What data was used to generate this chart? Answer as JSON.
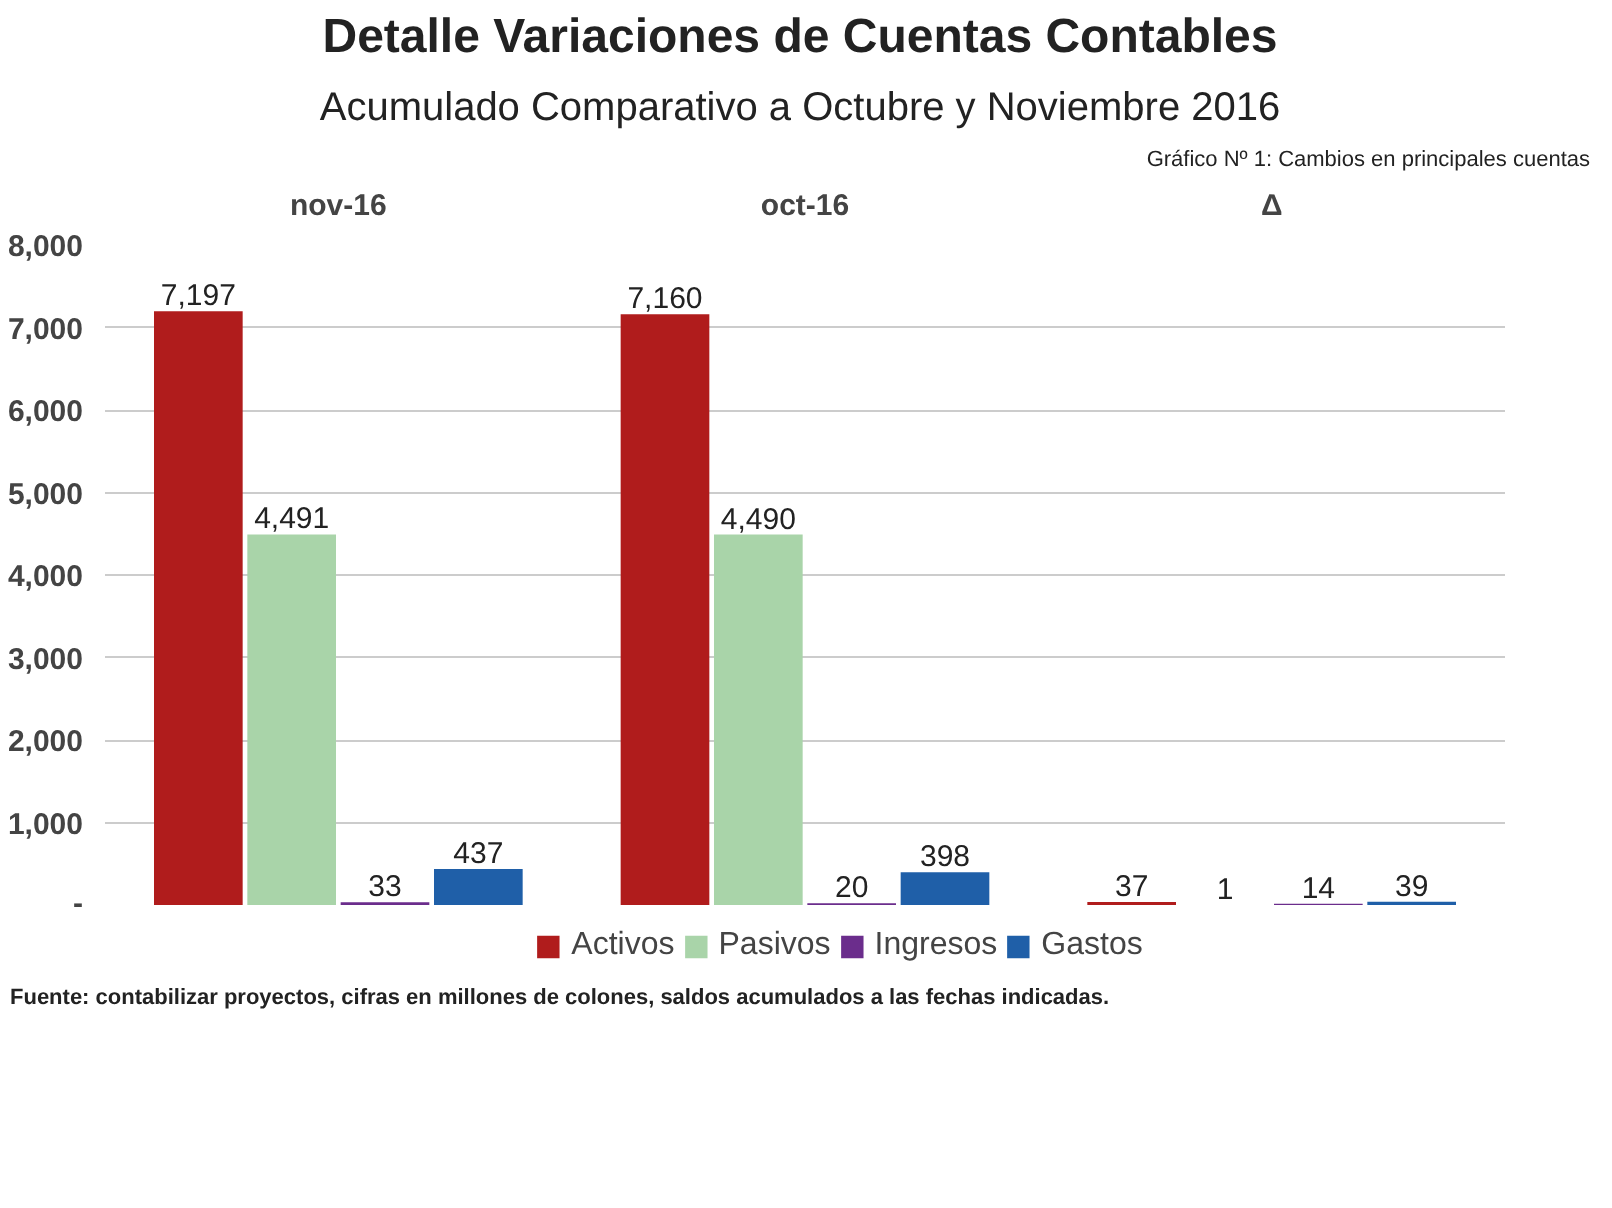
{
  "chart_data": {
    "type": "bar",
    "title": "Detalle  Variaciones de Cuentas Contables",
    "subtitle": "Acumulado Comparativo a Octubre y Noviembre 2016",
    "annotations": [
      "Gráfico Nº 1: Cambios en principales cuentas",
      "Fuente: contabilizar proyectos, cifras en millones de colones, saldos acumulados a las fechas indicadas."
    ],
    "categories": [
      "nov-16",
      "oct-16",
      "Δ"
    ],
    "series": [
      {
        "name": "Activos",
        "color": "#b01c1c",
        "values": [
          7197,
          7160,
          37
        ],
        "value_labels": [
          "7,197",
          "7,160",
          "37"
        ]
      },
      {
        "name": "Pasivos",
        "color": "#a9d4a9",
        "values": [
          4491,
          4490,
          1
        ],
        "value_labels": [
          "4,491",
          "4,490",
          "1"
        ]
      },
      {
        "name": "Ingresos",
        "color": "#6b2d8c",
        "values": [
          33,
          20,
          14
        ],
        "value_labels": [
          "33",
          "20",
          "14"
        ]
      },
      {
        "name": "Gastos",
        "color": "#1f5fa8",
        "values": [
          437,
          398,
          39
        ],
        "value_labels": [
          "437",
          "398",
          "39"
        ]
      }
    ],
    "ylim": [
      0,
      8000
    ],
    "yticks": [
      {
        "value": 0,
        "label": "-"
      },
      {
        "value": 1000,
        "label": "1,000"
      },
      {
        "value": 2000,
        "label": "2,000"
      },
      {
        "value": 3000,
        "label": "3,000"
      },
      {
        "value": 4000,
        "label": "4,000"
      },
      {
        "value": 5000,
        "label": "5,000"
      },
      {
        "value": 6000,
        "label": "6,000"
      },
      {
        "value": 7000,
        "label": "7,000"
      },
      {
        "value": 8000,
        "label": "8,000"
      }
    ],
    "grid": "y",
    "legend": "bottom"
  }
}
